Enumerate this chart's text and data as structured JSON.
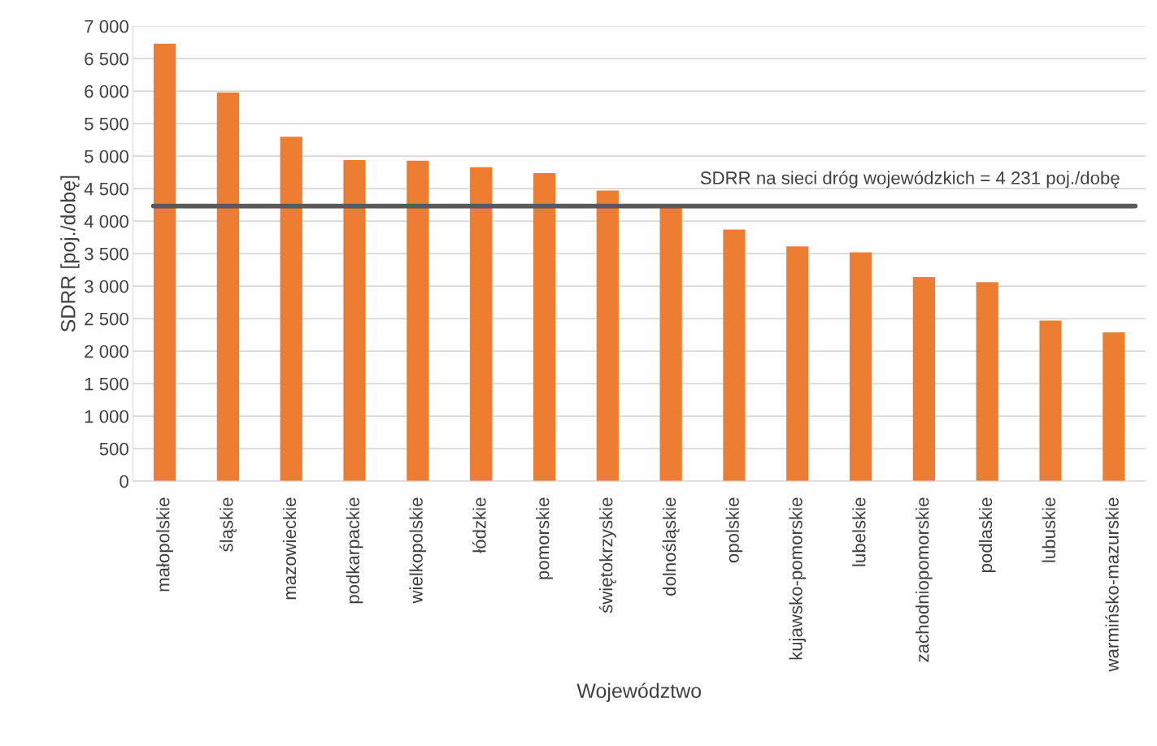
{
  "chart_data": {
    "type": "bar",
    "xlabel": "Województwo",
    "ylabel": "SDRR [poj./dobę]",
    "categories": [
      "małopolskie",
      "śląskie",
      "mazowieckie",
      "podkarpackie",
      "wielkopolskie",
      "łódzkie",
      "pomorskie",
      "świętokrzyskie",
      "dolnośląskie",
      "opolskie",
      "kujawsko-pomorskie",
      "lubelskie",
      "zachodniopomorskie",
      "podlaskie",
      "lubuskie",
      "warmińsko-mazurskie"
    ],
    "values": [
      6730,
      5980,
      5300,
      4940,
      4930,
      4830,
      4740,
      4470,
      4210,
      3870,
      3610,
      3520,
      3140,
      3060,
      2470,
      2290
    ],
    "color": "#ed7d31",
    "ylim": [
      0,
      7000
    ],
    "yticks": [
      0,
      500,
      {
        "value": 1000,
        "label": "1 000"
      },
      {
        "value": 1500,
        "label": "1 500"
      },
      {
        "value": 2000,
        "label": "2 000"
      },
      {
        "value": 2500,
        "label": "2 500"
      },
      {
        "value": 3000,
        "label": "3 000"
      },
      {
        "value": 3500,
        "label": "3 500"
      },
      {
        "value": 4000,
        "label": "4 000"
      },
      {
        "value": 4500,
        "label": "4 500"
      },
      {
        "value": 5000,
        "label": "5 000"
      },
      {
        "value": 5500,
        "label": "5 500"
      },
      {
        "value": 6000,
        "label": "6 000"
      },
      {
        "value": 6500,
        "label": "6 500"
      },
      {
        "value": 7000,
        "label": "7 000"
      }
    ],
    "ref_lines": [
      {
        "axis": "y",
        "value": 4231,
        "label": "SDRR na sieci dróg wojewódzkich = 4 231 poj./dobę",
        "color": "#595959"
      }
    ],
    "grid": "y",
    "legend": false
  }
}
